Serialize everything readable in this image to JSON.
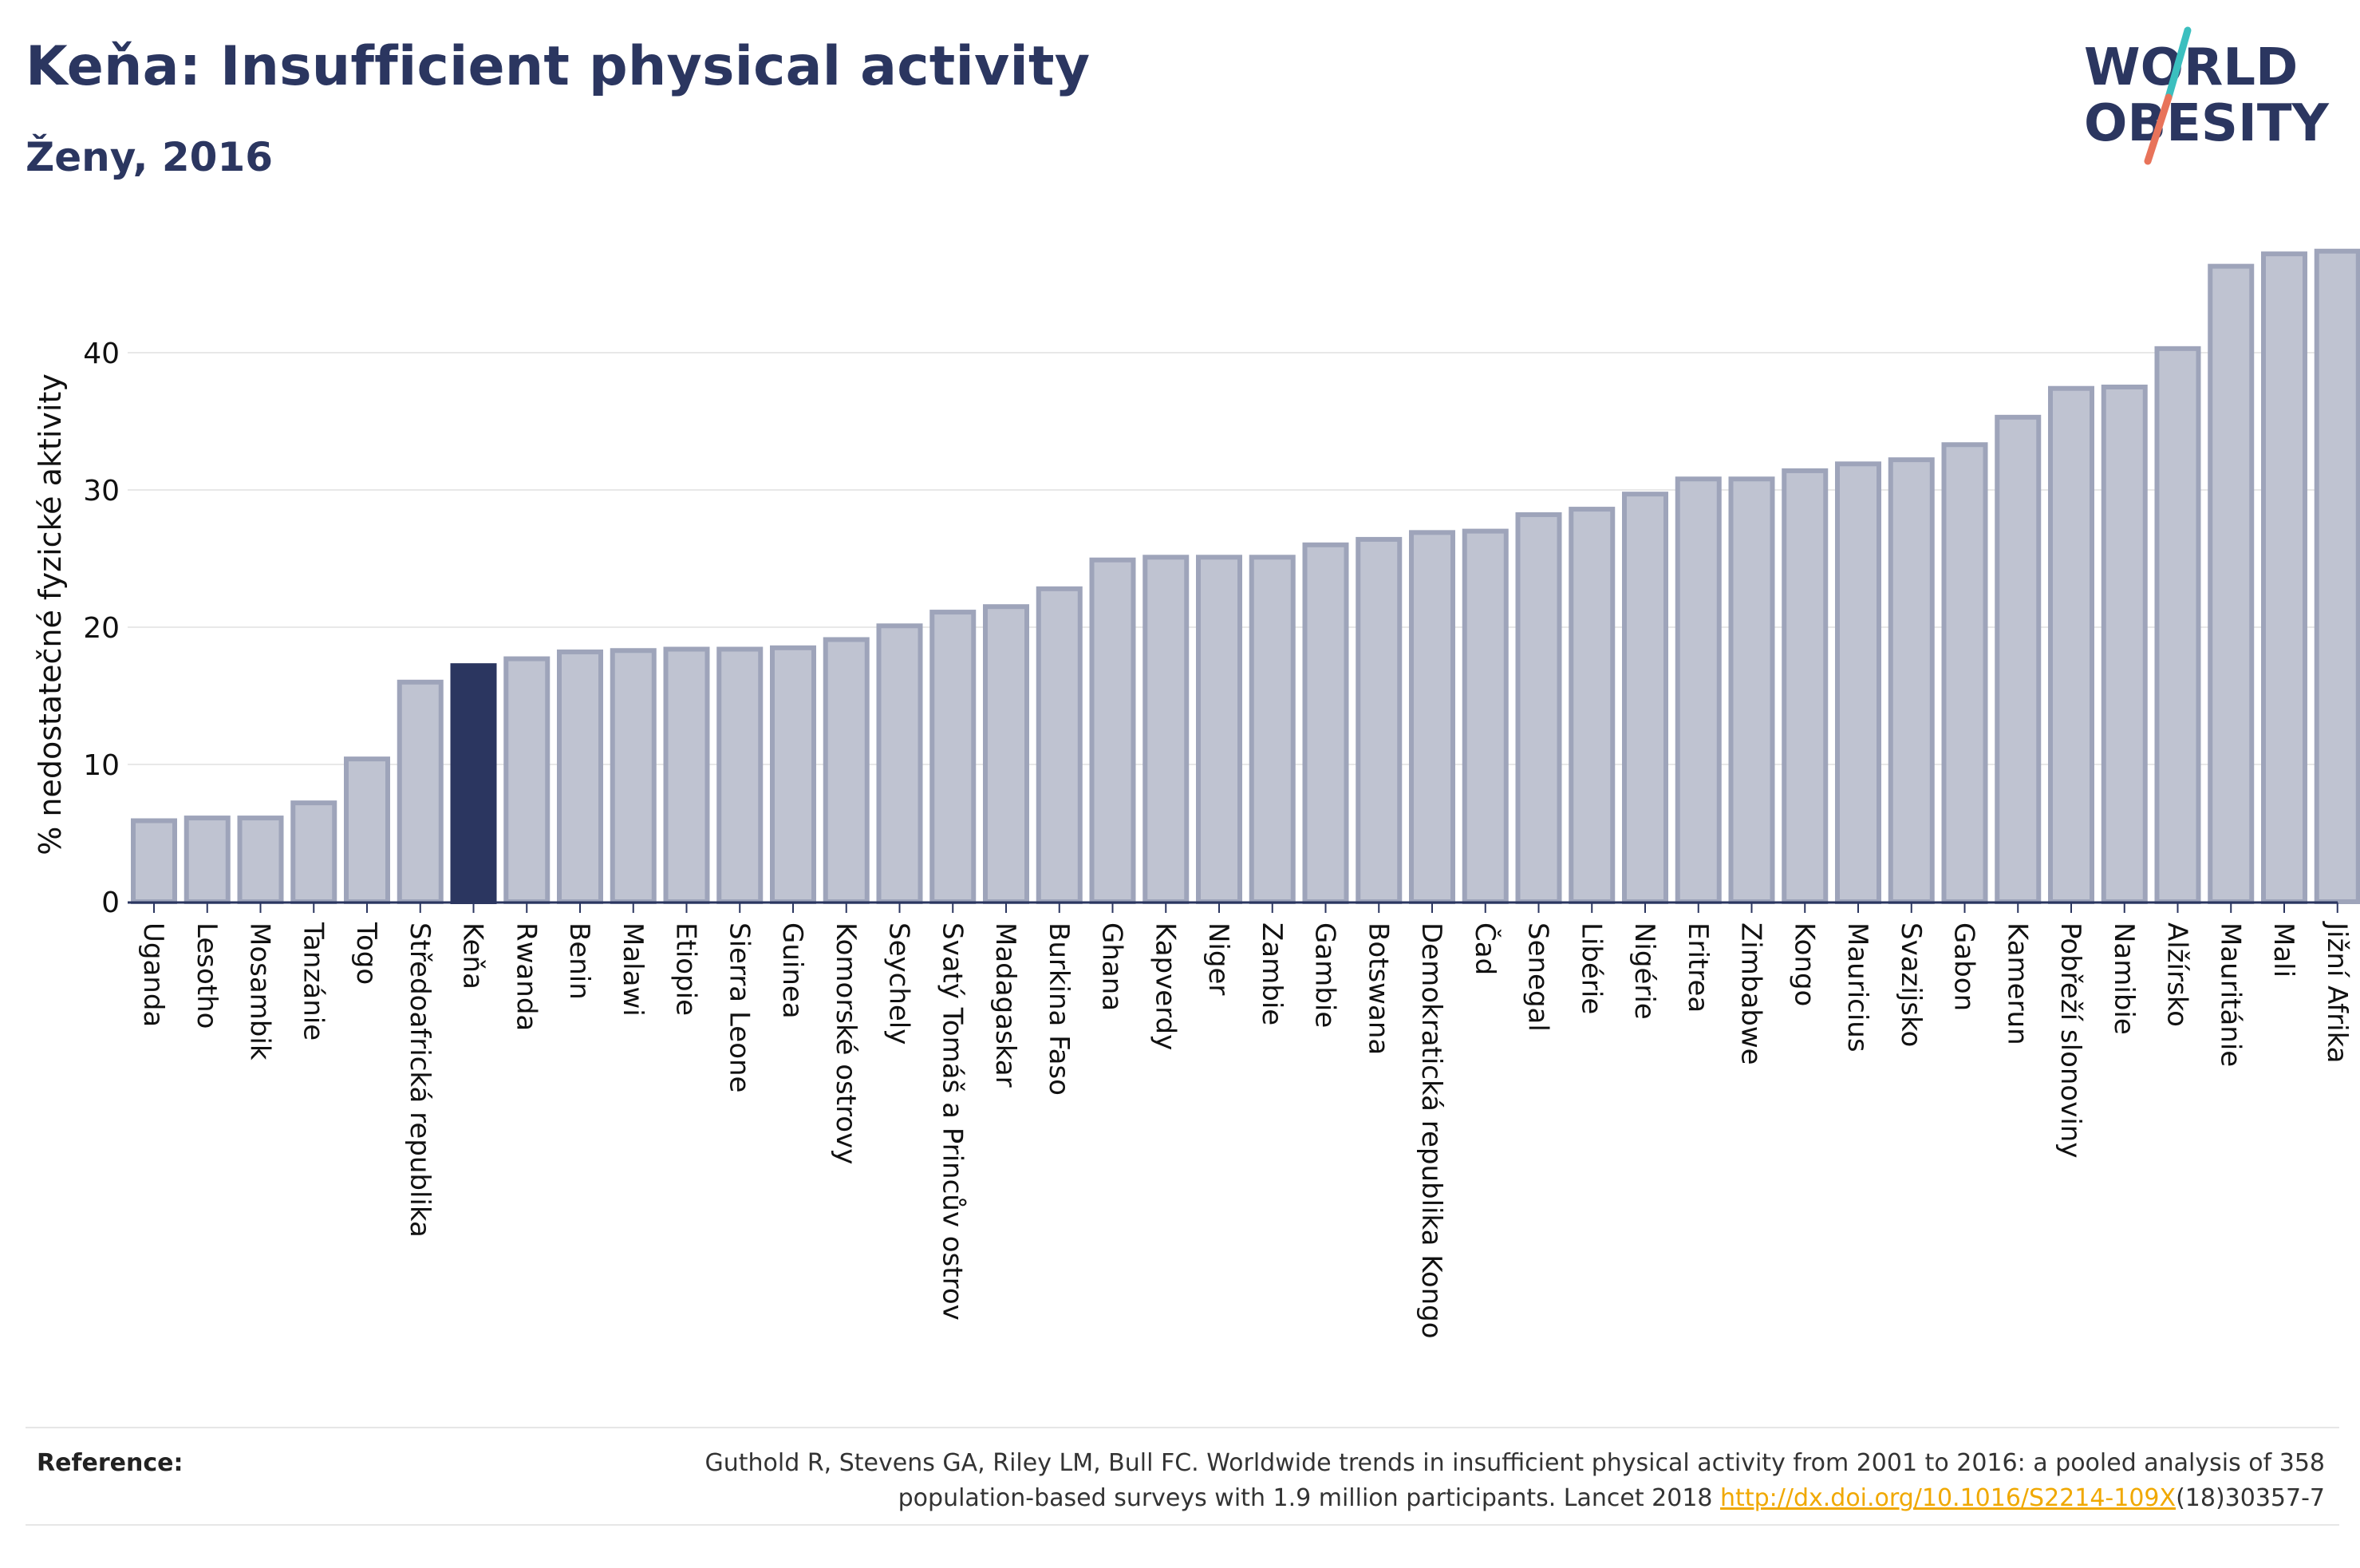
{
  "header": {
    "title": "Keňa: Insufficient physical activity",
    "subtitle": "Ženy, 2016"
  },
  "logo": {
    "line1": "WORLD",
    "line2": "OBESITY",
    "colors": {
      "text": "#2b3660",
      "slash_teal": "#3bbfbf",
      "slash_coral": "#e8735a"
    }
  },
  "colors": {
    "bar_fill": "#bfc3d1",
    "bar_stroke": "#9ea4ba",
    "highlight_fill": "#2b3660",
    "axis": "#2b3660",
    "grid": "#e8e8e8",
    "text": "#111111"
  },
  "chart_data": {
    "type": "bar",
    "title": "Keňa: Insufficient physical activity",
    "subtitle": "Ženy, 2016",
    "xlabel": "",
    "ylabel": "% nedostatečné fyzické aktivity",
    "ylim": [
      0,
      50
    ],
    "yticks": [
      0,
      10,
      20,
      30,
      40
    ],
    "grid": true,
    "highlight": "Keňa",
    "categories": [
      "Uganda",
      "Lesotho",
      "Mosambik",
      "Tanzánie",
      "Togo",
      "Středoafrická republika",
      "Keňa",
      "Rwanda",
      "Benin",
      "Malawi",
      "Etiopie",
      "Sierra Leone",
      "Guinea",
      "Komorské ostrovy",
      "Seychely",
      "Svatý Tomáš a Princův ostrov",
      "Madagaskar",
      "Burkina Faso",
      "Ghana",
      "Kapverdy",
      "Niger",
      "Zambie",
      "Gambie",
      "Botswana",
      "Demokratická republika Kongo",
      "Čad",
      "Senegal",
      "Libérie",
      "Nigérie",
      "Eritrea",
      "Zimbabwe",
      "Kongo",
      "Mauricius",
      "Svazijsko",
      "Gabon",
      "Kamerun",
      "Pobřeží slonoviny",
      "Namibie",
      "Alžírsko",
      "Mauritánie",
      "Mali",
      "Jižní Afrika"
    ],
    "values": [
      5.9,
      6.1,
      6.1,
      7.2,
      10.4,
      16.0,
      17.2,
      17.7,
      18.2,
      18.3,
      18.4,
      18.4,
      18.5,
      19.1,
      20.1,
      21.1,
      21.5,
      22.8,
      24.9,
      25.1,
      25.1,
      25.1,
      26.0,
      26.4,
      26.9,
      27.0,
      28.2,
      28.6,
      29.7,
      30.8,
      30.8,
      31.4,
      31.9,
      32.2,
      33.3,
      35.3,
      37.4,
      37.5,
      40.3,
      46.3,
      47.2,
      47.4
    ]
  },
  "reference": {
    "label": "Reference:",
    "line1": "Guthold R, Stevens GA, Riley LM, Bull FC. Worldwide trends in insufficient physical activity from 2001 to 2016: a pooled analysis of 358",
    "line2_before": "population-based surveys with 1.9 million participants. Lancet 2018 ",
    "link_text": "http://dx.doi.org/10.1016/S2214-109X",
    "line2_after": "(18)30357-7"
  }
}
